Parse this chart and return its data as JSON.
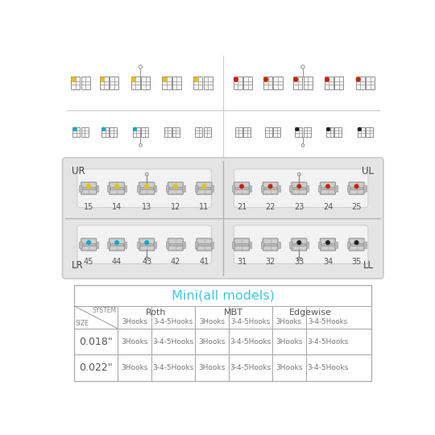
{
  "bg_color": "#ffffff",
  "table_title": "Mini(all models)",
  "table_title_color": "#3ec8e0",
  "row1_label": "0.018\"",
  "row2_label": "0.022\"",
  "row_data": [
    "3Hooks",
    "3-4-5Hooks",
    "3Hooks",
    "3-4-5Hooks",
    "3Hooks",
    "3-4-5Hooks"
  ],
  "quadrant_labels": [
    "UR",
    "UL",
    "LR",
    "LL"
  ],
  "upper_left_teeth": [
    "15",
    "14",
    "13",
    "12",
    "11"
  ],
  "upper_right_teeth": [
    "21",
    "22",
    "23",
    "24",
    "25"
  ],
  "lower_left_teeth": [
    "45",
    "44",
    "43",
    "42",
    "41"
  ],
  "lower_right_teeth": [
    "31",
    "32",
    "33",
    "34",
    "35"
  ],
  "panel_bg": "#e4e4e4",
  "pill_bg": "#f2f2f2",
  "text_color": "#555555",
  "line_color": "#aaaaaa",
  "dot_colors_upper_left": [
    "#e8c000",
    "#e8c000",
    "#e8c000",
    "#e8c000",
    "#e8c000"
  ],
  "dot_colors_upper_right": [
    "#cc2200",
    "#cc2200",
    "#cc2200",
    "#cc2200",
    "#cc2200"
  ],
  "dot_colors_lower_left": [
    "#00aacc",
    "#00aacc",
    "#00aacc",
    null,
    null
  ],
  "dot_colors_lower_right": [
    null,
    null,
    "#222222",
    "#222222",
    "#222222"
  ],
  "schematic_row1_dots_left": [
    "#e8c000",
    "#e8c000",
    "#e8c000",
    "#e8c000",
    "#e8c000"
  ],
  "schematic_row1_dots_right": [
    "#cc2200",
    "#cc2200",
    "#cc2200",
    "#cc2200",
    "#cc2200"
  ],
  "schematic_row2_dots_left": [
    "#00aacc",
    "#00aacc",
    "#00aacc",
    null,
    null
  ],
  "schematic_row2_dots_right": [
    null,
    null,
    "#222222",
    "#222222",
    "#222222"
  ],
  "schem_hook_idx_row1": 2,
  "schem_hook_idx_row2": 2,
  "panel_hook_upper_idx": 2,
  "panel_hook_lower_idx": 2
}
